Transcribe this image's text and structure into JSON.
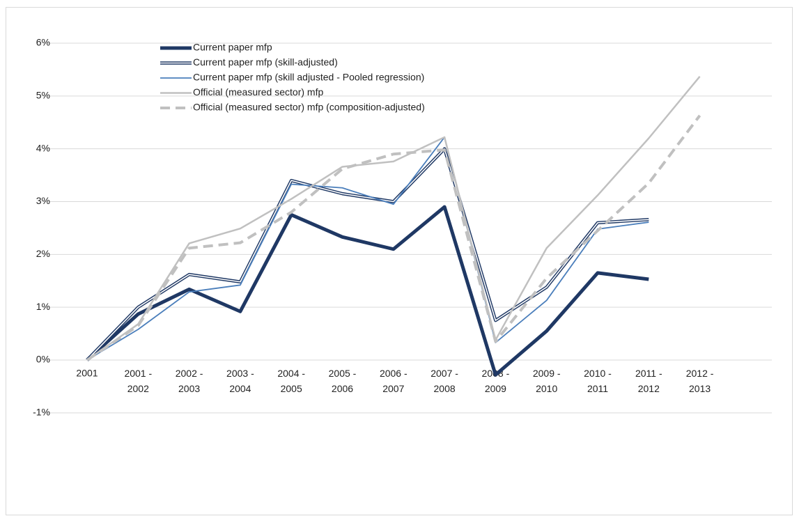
{
  "chart_data": {
    "type": "line",
    "categories": [
      "2001",
      "2001 - 2002",
      "2002 - 2003",
      "2003 - 2004",
      "2004 - 2005",
      "2005 - 2006",
      "2006 - 2007",
      "2007 - 2008",
      "2008 - 2009",
      "2009 - 2010",
      "2010 - 2011",
      "2011 - 2012",
      "2012 - 2013",
      null
    ],
    "ylim": [
      -1.5,
      6
    ],
    "yticks": [
      {
        "value": -1,
        "label": "-1%"
      },
      {
        "value": 0,
        "label": "0%"
      },
      {
        "value": 1,
        "label": "1%"
      },
      {
        "value": 2,
        "label": "2%"
      },
      {
        "value": 3,
        "label": "3%"
      },
      {
        "value": 4,
        "label": "4%"
      },
      {
        "value": 5,
        "label": "5%"
      },
      {
        "value": 6,
        "label": "6%"
      }
    ],
    "grid": true,
    "legend": "upper left",
    "series": [
      {
        "name": "Current paper mfp",
        "color": "#1f3864",
        "style": "solid",
        "width": 5,
        "values": [
          0,
          0.87,
          1.34,
          0.92,
          2.75,
          2.33,
          2.1,
          2.9,
          -0.28,
          0.55,
          1.65,
          1.53,
          null,
          null
        ]
      },
      {
        "name": "Current paper mfp (skill-adjusted)",
        "color": "#1f3864",
        "style": "double",
        "width": 4.5,
        "values": [
          0,
          1.0,
          1.62,
          1.48,
          3.4,
          3.15,
          3.0,
          4.0,
          0.75,
          1.38,
          2.6,
          2.66,
          null,
          null
        ]
      },
      {
        "name": "Current paper mfp (skill adjusted - Pooled regression)",
        "color": "#4a7ebb",
        "style": "solid",
        "width": 1.8,
        "values": [
          0,
          0.58,
          1.29,
          1.42,
          3.33,
          3.26,
          2.95,
          4.22,
          0.33,
          1.13,
          2.48,
          2.61,
          null,
          null
        ]
      },
      {
        "name": "Official (measured sector) mfp",
        "color": "#c0c0c0",
        "style": "solid",
        "width": 2.5,
        "values": [
          0,
          0.68,
          2.21,
          2.49,
          3.05,
          3.66,
          3.76,
          4.22,
          0.38,
          2.12,
          3.12,
          4.2,
          5.37,
          null
        ]
      },
      {
        "name": "Official (measured sector) mfp (composition-adjusted)",
        "color": "#c0c0c0",
        "style": "dashed",
        "width": 4,
        "values": [
          0,
          0.65,
          2.12,
          2.22,
          2.8,
          3.62,
          3.9,
          3.98,
          0.35,
          1.55,
          2.45,
          3.35,
          4.63,
          null
        ]
      }
    ]
  }
}
